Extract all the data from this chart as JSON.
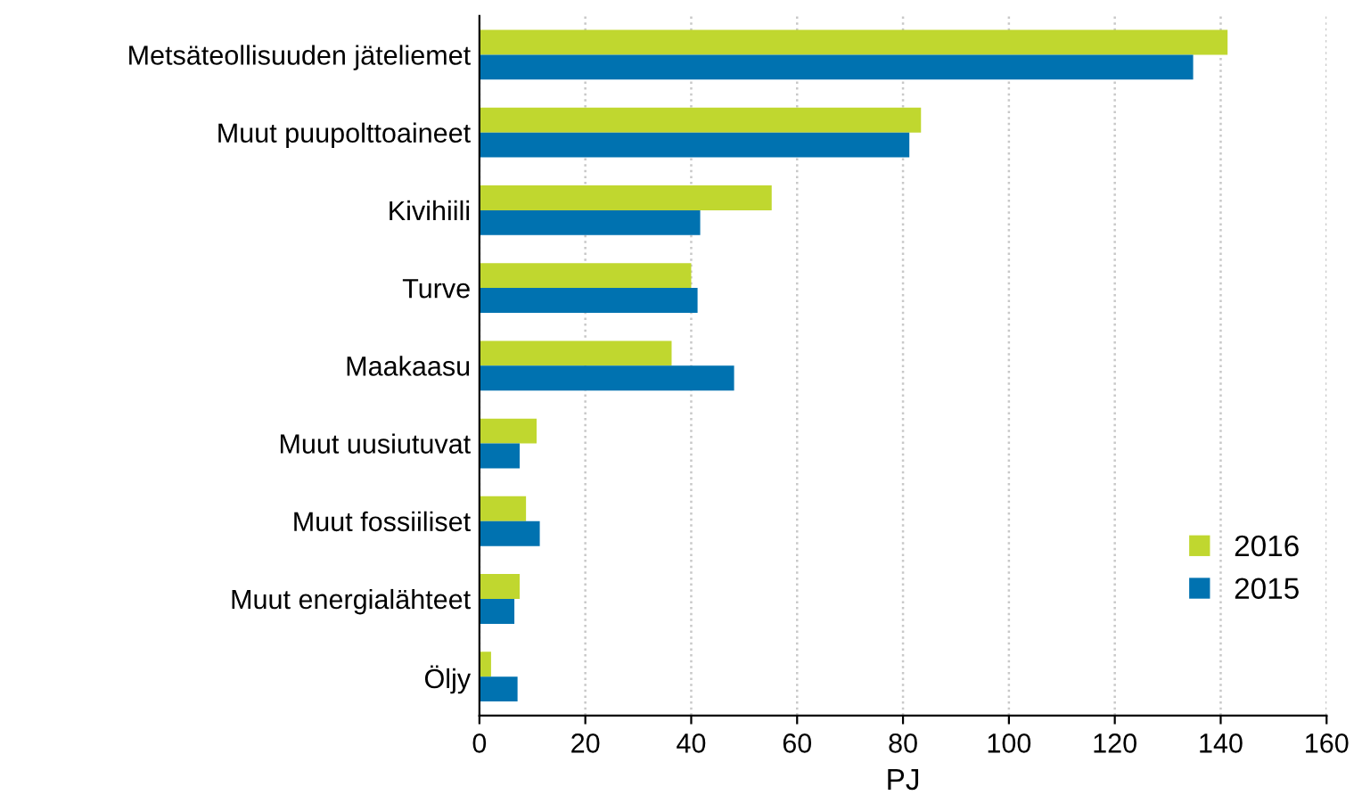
{
  "chart_data": {
    "type": "bar",
    "orientation": "horizontal",
    "xlabel": "PJ",
    "categories": [
      "Metsäteollisuuden jäteliemet",
      "Muut puupolttoaineet",
      "Kivihiili",
      "Turve",
      "Maakaasu",
      "Muut uusiutuvat",
      "Muut fossiiliset",
      "Muut energialähteet",
      "Öljy"
    ],
    "series": [
      {
        "name": "2016",
        "color": "#c0d72f",
        "values": [
          141.3,
          83.4,
          55.2,
          40.0,
          36.3,
          10.8,
          8.8,
          7.6,
          2.2
        ]
      },
      {
        "name": "2015",
        "color": "#0072b0",
        "values": [
          134.8,
          81.2,
          41.7,
          41.2,
          48.1,
          7.6,
          11.4,
          6.6,
          7.2
        ]
      }
    ],
    "xlim": [
      0,
      160
    ],
    "xticks": [
      0,
      20,
      40,
      60,
      80,
      100,
      120,
      140,
      160
    ],
    "grid": "x",
    "legend": "bottom right"
  }
}
